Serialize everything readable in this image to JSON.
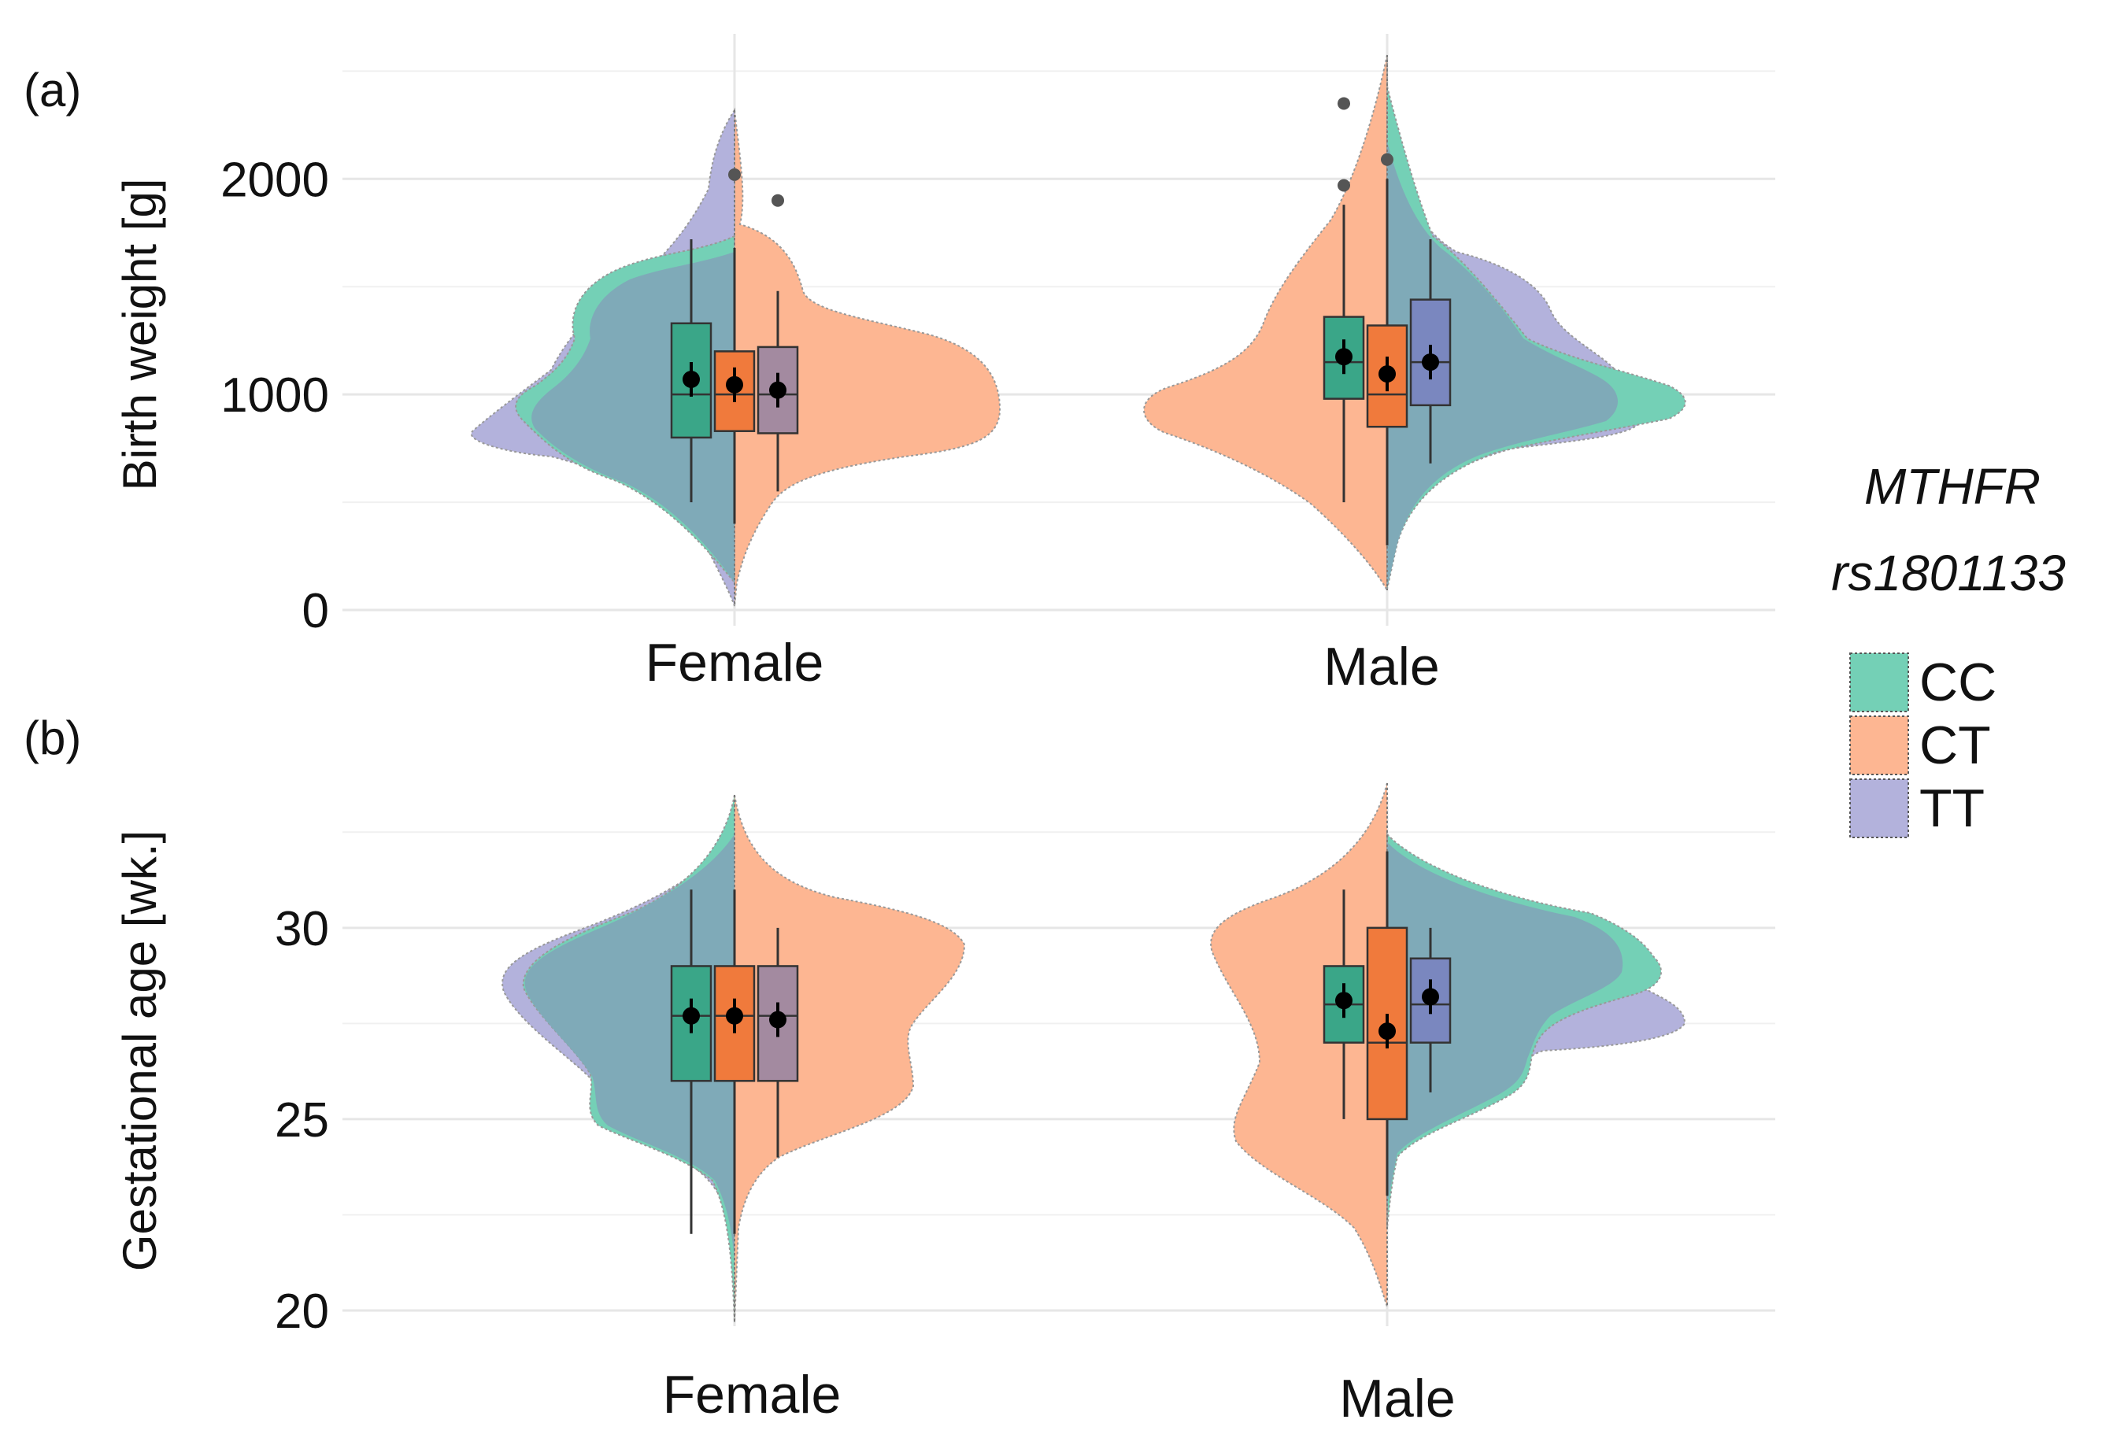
{
  "chart_data": [
    {
      "type": "split-violin-box",
      "panel_label": "(a)",
      "ylabel": "Birth weight [g]",
      "ylim": [
        0,
        2600
      ],
      "yticks": [
        0,
        1000,
        2000
      ],
      "categories": [
        "Female",
        "Male"
      ],
      "groups": [
        {
          "category": "Female",
          "series": [
            {
              "genotype": "CC",
              "q1": 800,
              "median": 1000,
              "q3": 1330,
              "mean": 1070,
              "whisker_low": 500,
              "whisker_high": 1720,
              "outliers": []
            },
            {
              "genotype": "CT",
              "q1": 830,
              "median": 1000,
              "q3": 1200,
              "mean": 1045,
              "whisker_low": 400,
              "whisker_high": 1680,
              "outliers": [
                2020
              ]
            },
            {
              "genotype": "TT",
              "q1": 820,
              "median": 1000,
              "q3": 1220,
              "mean": 1020,
              "whisker_low": 550,
              "whisker_high": 1480,
              "outliers": [
                1900
              ]
            }
          ]
        },
        {
          "category": "Male",
          "series": [
            {
              "genotype": "CC",
              "q1": 980,
              "median": 1150,
              "q3": 1360,
              "mean": 1175,
              "whisker_low": 500,
              "whisker_high": 1880,
              "outliers": [
                1970,
                2350
              ]
            },
            {
              "genotype": "CT",
              "q1": 850,
              "median": 1000,
              "q3": 1320,
              "mean": 1095,
              "whisker_low": 300,
              "whisker_high": 2000,
              "outliers": [
                2090
              ]
            },
            {
              "genotype": "TT",
              "q1": 950,
              "median": 1150,
              "q3": 1440,
              "mean": 1150,
              "whisker_low": 680,
              "whisker_high": 1720,
              "outliers": []
            }
          ]
        }
      ]
    },
    {
      "type": "split-violin-box",
      "panel_label": "(b)",
      "ylabel": "Gestational age [wk.]",
      "ylim": [
        20,
        33
      ],
      "yticks": [
        20,
        25,
        30
      ],
      "categories": [
        "Female",
        "Male"
      ],
      "groups": [
        {
          "category": "Female",
          "series": [
            {
              "genotype": "CC",
              "q1": 26,
              "median": 27.7,
              "q3": 29,
              "mean": 27.7,
              "whisker_low": 22,
              "whisker_high": 31,
              "outliers": []
            },
            {
              "genotype": "CT",
              "q1": 26,
              "median": 27.7,
              "q3": 29,
              "mean": 27.7,
              "whisker_low": 22,
              "whisker_high": 31,
              "outliers": []
            },
            {
              "genotype": "TT",
              "q1": 26,
              "median": 27.7,
              "q3": 29,
              "mean": 27.6,
              "whisker_low": 24,
              "whisker_high": 30,
              "outliers": []
            }
          ]
        },
        {
          "category": "Male",
          "series": [
            {
              "genotype": "CC",
              "q1": 27,
              "median": 28,
              "q3": 29,
              "mean": 28.1,
              "whisker_low": 25,
              "whisker_high": 31,
              "outliers": []
            },
            {
              "genotype": "CT",
              "q1": 25,
              "median": 27,
              "q3": 30,
              "mean": 27.3,
              "whisker_low": 23,
              "whisker_high": 32,
              "outliers": []
            },
            {
              "genotype": "TT",
              "q1": 27,
              "median": 28,
              "q3": 29.2,
              "mean": 28.2,
              "whisker_low": 25.7,
              "whisker_high": 30,
              "outliers": []
            }
          ]
        }
      ]
    }
  ],
  "legend": {
    "title_line1": "MTHFR",
    "title_line2": "rs1801133",
    "items": [
      {
        "label": "CC",
        "color": "#66c2a5"
      },
      {
        "label": "CT",
        "color": "#fc8d62"
      },
      {
        "label": "TT",
        "color": "#8da0cb"
      }
    ]
  },
  "colors": {
    "CC_violin": "#74d0b6",
    "CT_violin": "#fdb692",
    "TT_violin": "#b3b2dc",
    "overlap": "#7faab8",
    "CC_box": "#3aa688",
    "CT_box": "#f07a3c",
    "TT_box": "#a38aa0",
    "TT_box_male": "#7a87bf"
  }
}
